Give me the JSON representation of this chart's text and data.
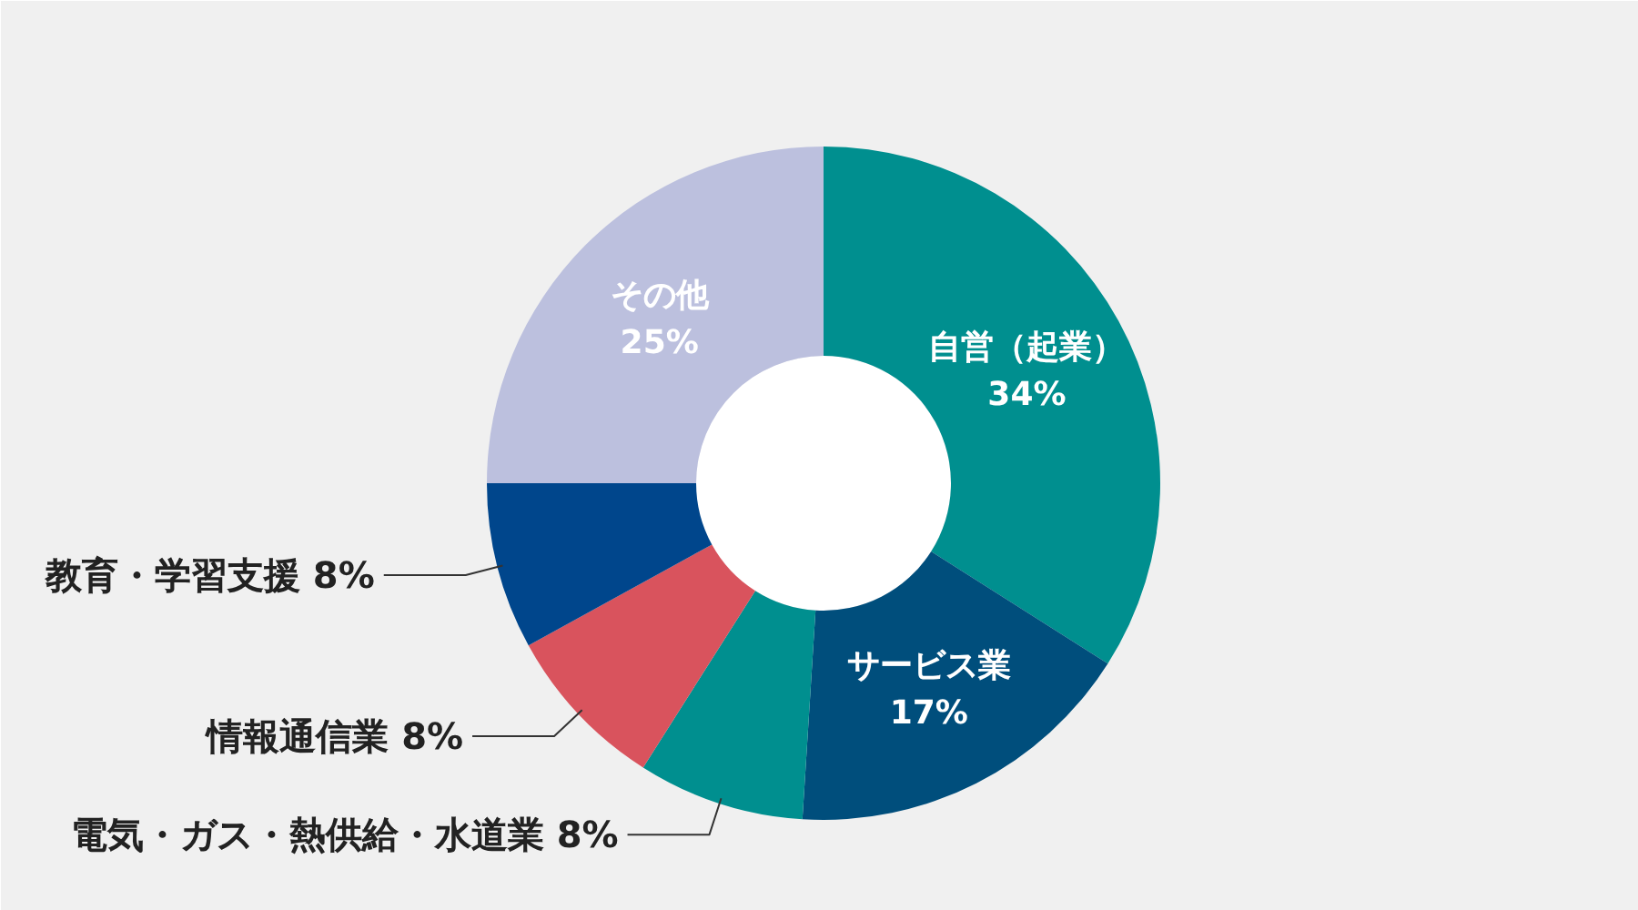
{
  "chart_data": {
    "type": "donut",
    "categories": [
      "自営（起業）",
      "サービス業",
      "電気・ガス・熱供給・水道業",
      "情報通信業",
      "教育・学習支援",
      "その他"
    ],
    "values": [
      34,
      17,
      8,
      8,
      8,
      25
    ],
    "colors": [
      "#008f8f",
      "#004e7c",
      "#008f8f",
      "#d9535d",
      "#00468c",
      "#bcc0de"
    ],
    "value_labels": [
      "34%",
      "17%",
      "8%",
      "8%",
      "8%",
      "25%"
    ]
  }
}
